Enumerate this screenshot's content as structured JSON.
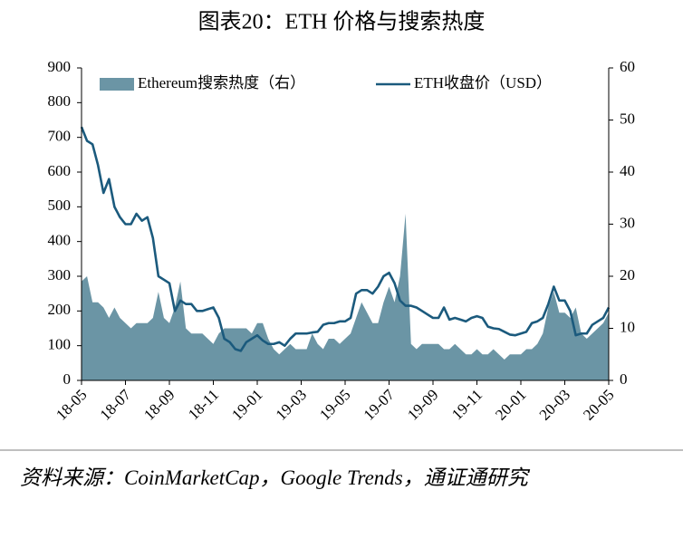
{
  "chart_data": {
    "type": "line",
    "title": "图表20：ETH 价格与搜索热度",
    "source": "资料来源：CoinMarketCap，Google Trends，通证通研究",
    "categories": [
      "18-05",
      null,
      null,
      null,
      null,
      null,
      null,
      null,
      "18-07",
      null,
      null,
      null,
      null,
      null,
      null,
      null,
      "18-09",
      null,
      null,
      null,
      null,
      null,
      null,
      null,
      "18-11",
      null,
      null,
      null,
      null,
      null,
      null,
      null,
      "19-01",
      null,
      null,
      null,
      null,
      null,
      null,
      null,
      "19-03",
      null,
      null,
      null,
      null,
      null,
      null,
      null,
      "19-05",
      null,
      null,
      null,
      null,
      null,
      null,
      null,
      "19-07",
      null,
      null,
      null,
      null,
      null,
      null,
      null,
      "19-09",
      null,
      null,
      null,
      null,
      null,
      null,
      null,
      "19-11",
      null,
      null,
      null,
      null,
      null,
      null,
      null,
      "20-01",
      null,
      null,
      null,
      null,
      null,
      null,
      null,
      "20-03",
      null,
      null,
      null,
      null,
      null,
      null,
      null,
      "20-05"
    ],
    "series": [
      {
        "name": "Ethereum搜索热度（右）",
        "type": "area",
        "axis": "y2",
        "color": "#6b95a5",
        "values": [
          19,
          20,
          15,
          15,
          14,
          12,
          14,
          12,
          11,
          10,
          11,
          11,
          11,
          12,
          17,
          12,
          11,
          14,
          19,
          10,
          9,
          9,
          9,
          8,
          7,
          9,
          10,
          10,
          10,
          10,
          10,
          9,
          11,
          11,
          8,
          6,
          5,
          6,
          7,
          6,
          6,
          6,
          9,
          7,
          6,
          8,
          8,
          7,
          8,
          9,
          12,
          15,
          13,
          11,
          11,
          15,
          18,
          15,
          20,
          32,
          7,
          6,
          7,
          7,
          7,
          7,
          6,
          6,
          7,
          6,
          5,
          5,
          6,
          5,
          5,
          6,
          5,
          4,
          5,
          5,
          5,
          6,
          6,
          7,
          9,
          14,
          17,
          13,
          13,
          12,
          14,
          9,
          8,
          9,
          10,
          11,
          13
        ]
      },
      {
        "name": "ETH收盘价（USD）",
        "type": "line",
        "color": "#1b5a7d",
        "values": [
          730,
          690,
          680,
          620,
          540,
          580,
          500,
          470,
          450,
          450,
          480,
          460,
          470,
          410,
          300,
          290,
          280,
          200,
          230,
          220,
          220,
          200,
          200,
          205,
          210,
          180,
          120,
          110,
          90,
          85,
          110,
          120,
          130,
          115,
          105,
          105,
          110,
          100,
          120,
          135,
          135,
          135,
          138,
          140,
          160,
          165,
          165,
          170,
          170,
          180,
          250,
          260,
          260,
          250,
          270,
          300,
          310,
          280,
          230,
          215,
          215,
          210,
          200,
          190,
          180,
          180,
          210,
          175,
          180,
          175,
          170,
          180,
          185,
          180,
          155,
          150,
          148,
          140,
          132,
          130,
          135,
          140,
          165,
          170,
          180,
          220,
          270,
          230,
          230,
          200,
          130,
          135,
          135,
          160,
          170,
          180,
          210
        ]
      }
    ],
    "ylim": [
      0,
      900
    ],
    "yticks": [
      0,
      100,
      200,
      300,
      400,
      500,
      600,
      700,
      800,
      900
    ],
    "y2lim": [
      0,
      60
    ],
    "y2ticks": [
      0,
      10,
      20,
      30,
      40,
      50,
      60
    ],
    "legend": "top"
  }
}
